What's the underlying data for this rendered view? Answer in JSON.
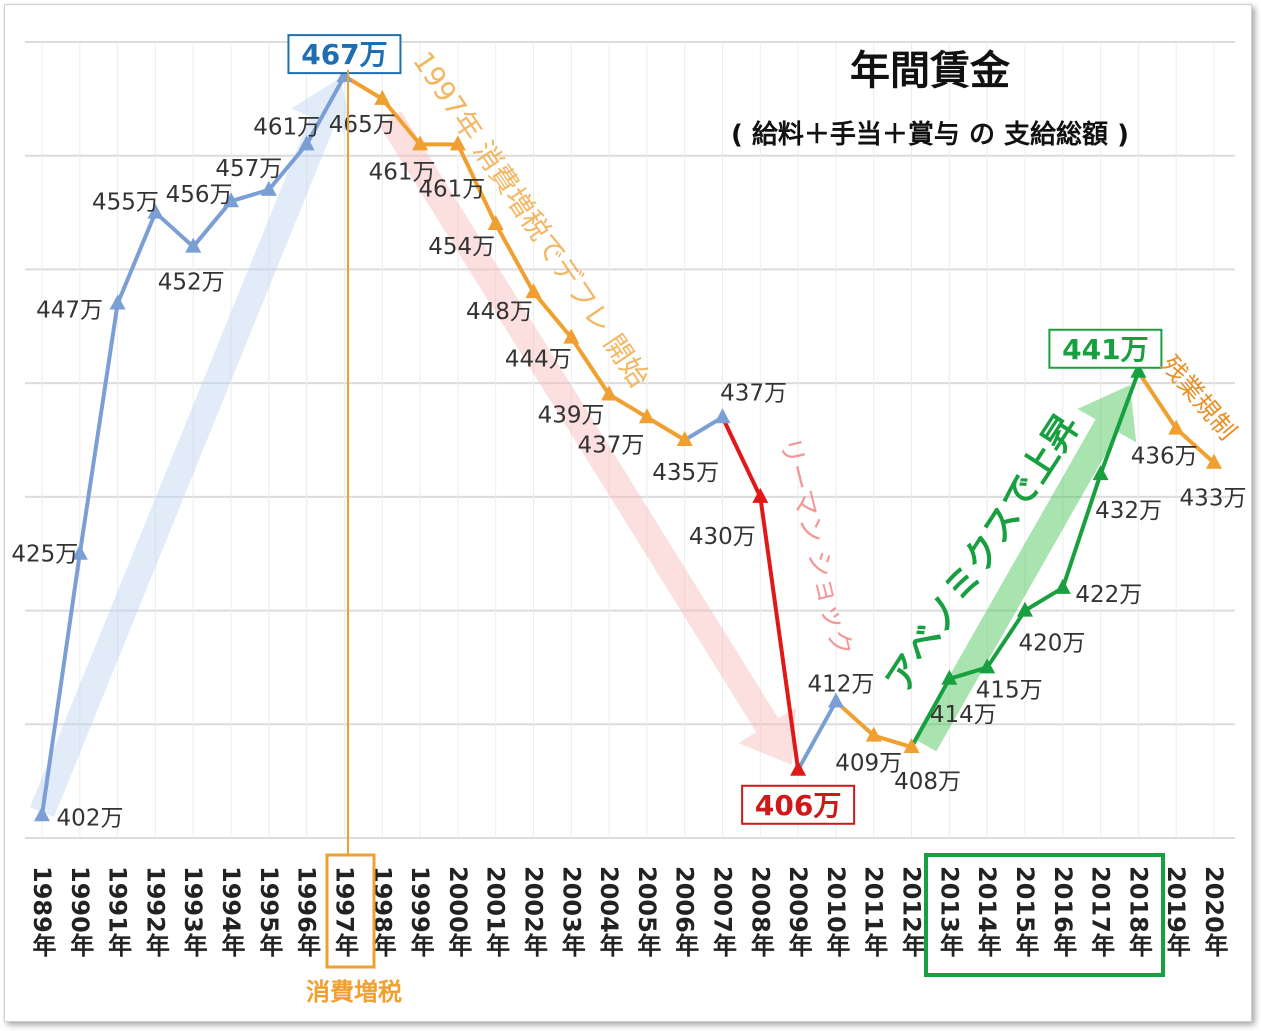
{
  "chart_data": {
    "type": "line",
    "title": "年間賃金",
    "subtitle": "( 給料＋手当＋賞与 の 支給総額 )",
    "unit": "万",
    "categories": [
      "1989年",
      "1990年",
      "1991年",
      "1992年",
      "1993年",
      "1994年",
      "1995年",
      "1996年",
      "1997年",
      "1998年",
      "1999年",
      "2000年",
      "2001年",
      "2002年",
      "2003年",
      "2004年",
      "2005年",
      "2006年",
      "2007年",
      "2008年",
      "2009年",
      "2010年",
      "2011年",
      "2012年",
      "2013年",
      "2014年",
      "2015年",
      "2016年",
      "2017年",
      "2018年",
      "2019年",
      "2020年"
    ],
    "values": [
      402,
      425,
      447,
      455,
      452,
      456,
      457,
      461,
      467,
      465,
      461,
      461,
      454,
      448,
      444,
      439,
      437,
      435,
      437,
      430,
      406,
      412,
      409,
      408,
      414,
      415,
      420,
      422,
      432,
      441,
      436,
      433
    ],
    "ylim": [
      400,
      470
    ],
    "grid": true,
    "segment_colors": {
      "rise": "#7b9fd4",
      "deflation": "#f0a030",
      "lehman": "#e01818",
      "abenomics": "#18a040"
    },
    "highlighted": [
      {
        "label": "467万",
        "category": "1997年",
        "color": "#1f6fb0"
      },
      {
        "label": "406万",
        "category": "2009年",
        "color": "#d01818"
      },
      {
        "label": "441万",
        "category": "2018年",
        "color": "#18a040"
      }
    ],
    "annotations": {
      "deflation": "1997年 消費増税でデフレ 開始",
      "lehman": "リーマン ショック",
      "abenomics": "アベノミクスで上昇",
      "overtime": "残業規制",
      "tax_hike": "消費増税"
    }
  }
}
